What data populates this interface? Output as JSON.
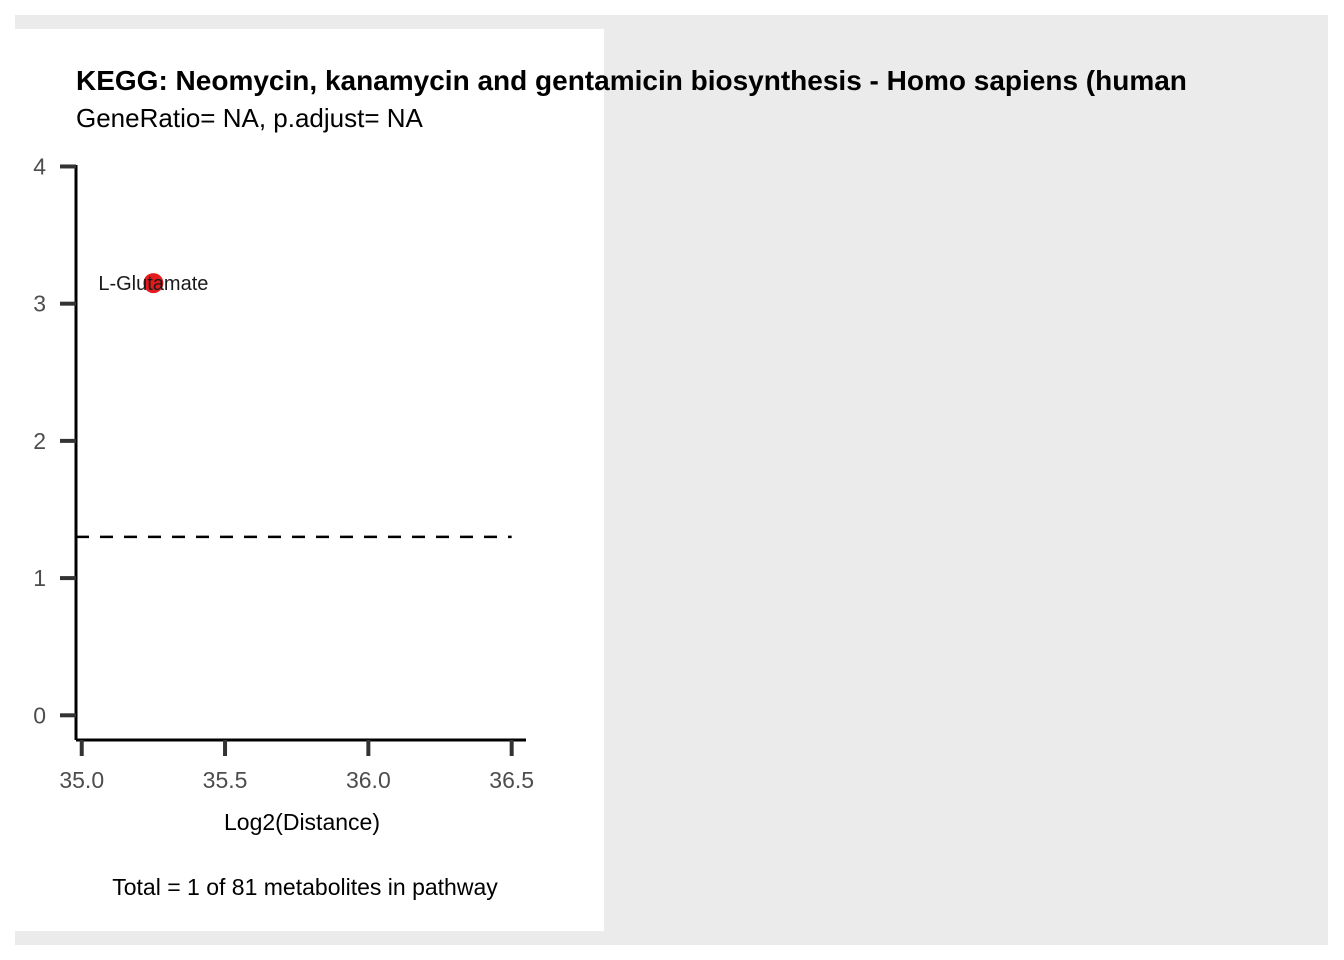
{
  "chart_data": {
    "type": "scatter",
    "title": "KEGG: Neomycin, kanamycin and gentamicin biosynthesis - Homo sapiens (human",
    "subtitle": "GeneRatio= NA, p.adjust= NA",
    "xlabel": "Log2(Distance)",
    "ylabel": "",
    "caption": "Total = 1 of 81 metabolites in pathway",
    "xlim": [
      34.98,
      36.55
    ],
    "ylim": [
      -0.18,
      4.12
    ],
    "x_ticks": [
      "35.0",
      "35.5",
      "36.0",
      "36.5"
    ],
    "x_tick_values": [
      35.0,
      35.5,
      36.0,
      36.5
    ],
    "y_ticks": [
      "0",
      "1",
      "2",
      "3",
      "4"
    ],
    "y_tick_values": [
      0,
      1,
      2,
      3,
      4
    ],
    "threshold_y": 1.3,
    "grid": false,
    "point_color": "#e41a1c",
    "points": [
      {
        "label": "L-Glutamate",
        "x": 35.25,
        "y": 3.15
      }
    ]
  }
}
